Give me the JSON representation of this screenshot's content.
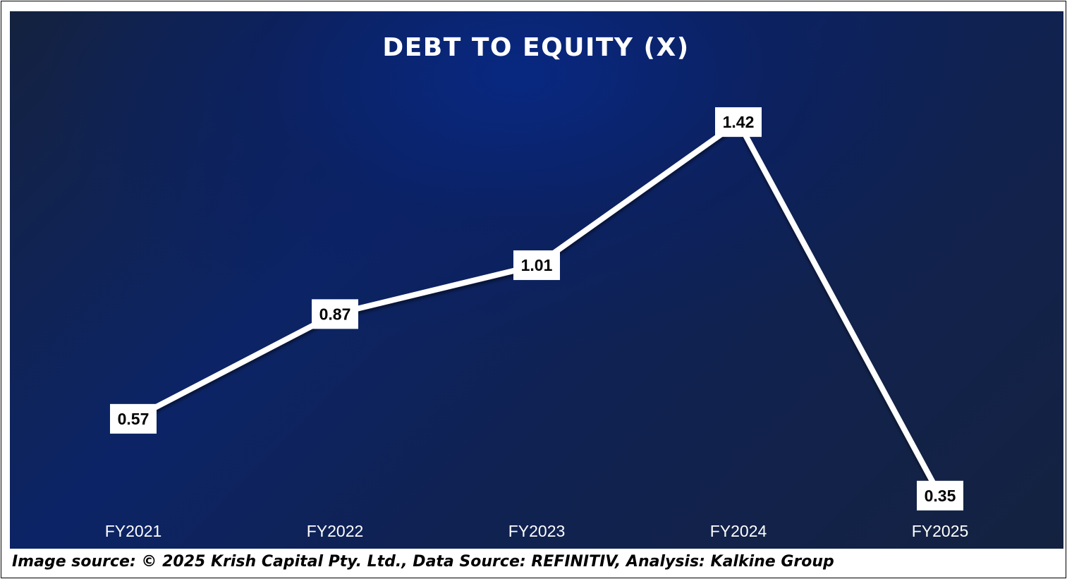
{
  "footnote": "Image source: © 2025 Krish Capital Pty. Ltd., Data Source: REFINITIV, Analysis: Kalkine Group",
  "colors": {
    "line": "#ffffff",
    "background_dark": "#14223f",
    "background_accent": "#0c2466",
    "label_box": "#ffffff",
    "label_text": "#000000"
  },
  "chart_data": {
    "type": "line",
    "title": "DEBT TO EQUITY (X)",
    "xlabel": "",
    "ylabel": "",
    "categories": [
      "FY2021",
      "FY2022",
      "FY2023",
      "FY2024",
      "FY2025"
    ],
    "series": [
      {
        "values": [
          0.57,
          0.87,
          1.01,
          1.42,
          0.35
        ],
        "labels": [
          "0.57",
          "0.87",
          "1.01",
          "1.42",
          "0.35"
        ]
      }
    ],
    "ylim": [
      0,
      1.6
    ],
    "grid": false,
    "legend": "none",
    "drop_lines": true
  }
}
